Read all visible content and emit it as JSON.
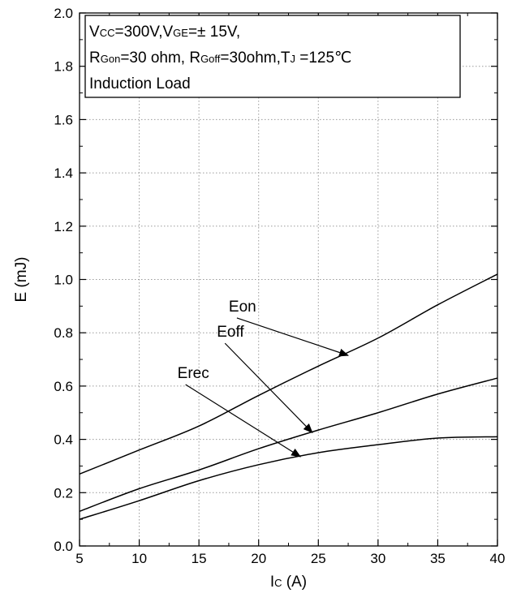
{
  "chart_data": {
    "type": "line",
    "xlabel": {
      "main": "I",
      "sub": "C",
      "rest": " (A)"
    },
    "ylabel": "E (mJ)",
    "xlim": [
      5,
      40
    ],
    "ylim": [
      0.0,
      2.0
    ],
    "grid": true,
    "x_ticks": [
      "5",
      "10",
      "15",
      "20",
      "25",
      "30",
      "35",
      "40"
    ],
    "y_ticks": [
      "0.0",
      "0.2",
      "0.4",
      "0.6",
      "0.8",
      "1.0",
      "1.2",
      "1.4",
      "1.6",
      "1.8",
      "2.0"
    ],
    "legend_placement": "top-left",
    "conditions": [
      [
        {
          "t": "V",
          "s": false
        },
        {
          "t": "CC",
          "s": true
        },
        {
          "t": "=300V,V",
          "s": false
        },
        {
          "t": "GE",
          "s": true
        },
        {
          "t": "=± 15V,",
          "s": false
        }
      ],
      [
        {
          "t": "R",
          "s": false
        },
        {
          "t": "Gon",
          "s": true
        },
        {
          "t": "=30 ohm, R",
          "s": false
        },
        {
          "t": "Goff",
          "s": true
        },
        {
          "t": "=30ohm,T",
          "s": false
        },
        {
          "t": "J",
          "s": true
        },
        {
          "t": " =125℃",
          "s": false
        }
      ],
      [
        {
          "t": "Induction Load",
          "s": false
        }
      ]
    ],
    "series": [
      {
        "name": "Eon",
        "x": [
          5,
          10,
          15,
          20,
          25,
          30,
          35,
          40
        ],
        "y": [
          0.27,
          0.36,
          0.45,
          0.565,
          0.675,
          0.78,
          0.905,
          1.02
        ],
        "label_at": [
          17.5,
          0.88
        ],
        "arrow_to": [
          27.5,
          0.715
        ]
      },
      {
        "name": "Eoff",
        "x": [
          5,
          10,
          15,
          20,
          25,
          30,
          35,
          40
        ],
        "y": [
          0.13,
          0.215,
          0.285,
          0.365,
          0.435,
          0.5,
          0.57,
          0.63
        ],
        "label_at": [
          16.5,
          0.785
        ],
        "arrow_to": [
          24.5,
          0.425
        ]
      },
      {
        "name": "Erec",
        "x": [
          5,
          10,
          15,
          20,
          25,
          30,
          35,
          40
        ],
        "y": [
          0.1,
          0.17,
          0.245,
          0.305,
          0.35,
          0.38,
          0.405,
          0.41
        ],
        "label_at": [
          13.2,
          0.63
        ],
        "arrow_to": [
          23.5,
          0.335
        ]
      }
    ]
  }
}
